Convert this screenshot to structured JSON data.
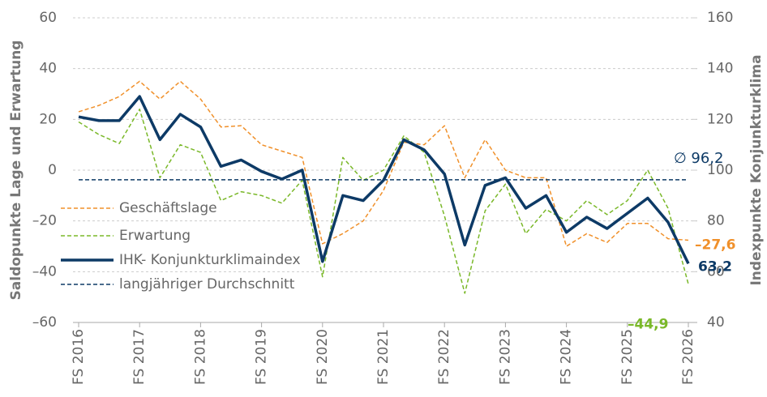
{
  "chart_data": {
    "type": "line",
    "ylabel": "Saldopunkte Lage und Erwartung",
    "y2label": "Indexpunkte Konjunkturklima",
    "categories": [
      "FS 2016",
      null,
      null,
      "FS 2017",
      null,
      null,
      "FS 2018",
      null,
      null,
      "FS 2019",
      null,
      null,
      "FS 2020",
      null,
      null,
      "FS 2021",
      null,
      null,
      "FS 2022",
      null,
      null,
      "FS 2023",
      null,
      null,
      "FS 2024",
      null,
      null,
      "FS 2025",
      null,
      null,
      "FS 2026"
    ],
    "ylim": [
      -60,
      60
    ],
    "yticks": [
      {
        "value": -60,
        "label": "–60"
      },
      {
        "value": -40,
        "label": "–40"
      },
      {
        "value": -20,
        "label": "–20"
      },
      0,
      20,
      40,
      60
    ],
    "y2lim": [
      40,
      160
    ],
    "y2ticks": [
      40,
      60,
      80,
      100,
      120,
      140,
      160
    ],
    "grid": true,
    "series": [
      {
        "name": "Geschäftslage",
        "color": "#f0902a",
        "style": "dashed",
        "width": 1.5,
        "values": [
          23,
          25.5,
          29,
          35,
          28,
          35,
          28,
          17,
          17.5,
          10,
          7.5,
          5,
          -29,
          -25,
          -20,
          -8,
          11,
          10,
          17.5,
          -3,
          12,
          0,
          -3,
          -3,
          -30,
          -25,
          -28.5,
          -21,
          -21,
          -27,
          -27.6
        ],
        "value_labels": [
          null,
          null,
          null,
          null,
          null,
          null,
          null,
          null,
          null,
          null,
          null,
          null,
          null,
          null,
          null,
          null,
          null,
          null,
          null,
          null,
          null,
          null,
          null,
          null,
          null,
          null,
          null,
          null,
          null,
          null,
          "–27,6"
        ]
      },
      {
        "name": "Erwartung",
        "color": "#7ab829",
        "style": "dashed",
        "width": 1.5,
        "values": [
          19,
          14,
          10.5,
          24,
          -3,
          10,
          7,
          -12,
          -8.5,
          -10,
          -13,
          -4,
          -42,
          5,
          -4,
          0,
          13.5,
          7,
          -18,
          -48.5,
          -16,
          -5.5,
          -25,
          -15.5,
          -20,
          -12,
          -17.5,
          -12,
          0,
          -15,
          -44.9
        ],
        "value_labels": [
          null,
          null,
          null,
          null,
          null,
          null,
          null,
          null,
          null,
          null,
          null,
          null,
          null,
          null,
          null,
          null,
          null,
          null,
          null,
          null,
          null,
          null,
          null,
          null,
          null,
          null,
          null,
          null,
          null,
          null,
          "–44,9"
        ]
      },
      {
        "name": "IHK- Konjunkturklimaindex",
        "color": "#0d3a66",
        "style": "solid",
        "width": 3.5,
        "axis": "y2",
        "values": [
          121,
          119.5,
          119.5,
          129,
          112,
          122,
          117,
          101.5,
          104,
          99.5,
          96.5,
          100,
          64,
          90,
          88,
          96,
          112,
          108,
          98.5,
          70.5,
          94,
          97,
          85,
          90,
          75.5,
          81.5,
          77,
          83,
          89,
          79.5,
          63.2
        ],
        "value_labels": [
          null,
          null,
          null,
          null,
          null,
          null,
          null,
          null,
          null,
          null,
          null,
          null,
          null,
          null,
          null,
          null,
          null,
          null,
          null,
          null,
          null,
          null,
          null,
          null,
          null,
          null,
          null,
          null,
          null,
          null,
          "63,2"
        ]
      },
      {
        "name": "langjähriger Durchschnitt",
        "color": "#0d3a66",
        "style": "dashed",
        "width": 1.5,
        "axis": "y2",
        "value": 96.2,
        "value_label": "∅ 96,2"
      }
    ]
  }
}
